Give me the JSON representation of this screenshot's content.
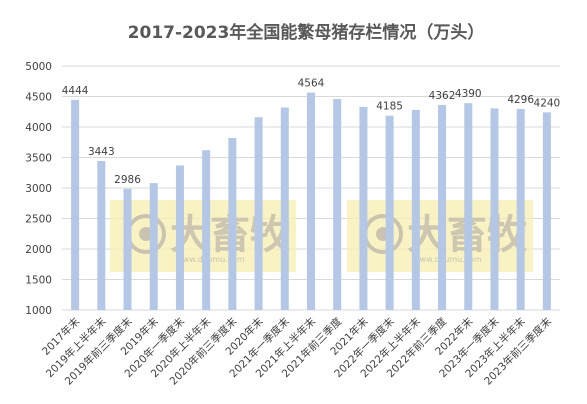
{
  "chart_data": {
    "type": "bar",
    "title": "2017-2023年全国能繁母猪存栏情况（万头）",
    "xlabel": "",
    "ylabel": "",
    "ylim": [
      1000,
      5000
    ],
    "yticks": [
      1000,
      1500,
      2000,
      2500,
      3000,
      3500,
      4000,
      4500,
      5000
    ],
    "grid": true,
    "color": "#b4c7e7",
    "categories": [
      "2017年末",
      "2019年上半年末",
      "2019年前三季度末",
      "2019年末",
      "2020年一季度末",
      "2020年上半年末",
      "2020年前三季度末",
      "2020年末",
      "2021年一季度末",
      "2021年上半年末",
      "2021年前三季度",
      "2021年末",
      "2022年一季度末",
      "2022年上半年末",
      "2022年前三季度",
      "2022年末",
      "2023年一季度末",
      "2023年上半年末",
      "2023年前三季度末"
    ],
    "values": [
      4444,
      3443,
      2986,
      3080,
      3370,
      3620,
      3820,
      4160,
      4320,
      4564,
      4460,
      4329,
      4185,
      4280,
      4362,
      4390,
      4305,
      4296,
      4240
    ],
    "data_labels": {
      "0": "4444",
      "1": "3443",
      "2": "2986",
      "9": "4564",
      "12": "4185",
      "14": "4362",
      "15": "4390",
      "17": "4296",
      "18": "4240"
    }
  },
  "watermark": {
    "brand": "大畜牧",
    "site": "www.dxumu.com"
  }
}
